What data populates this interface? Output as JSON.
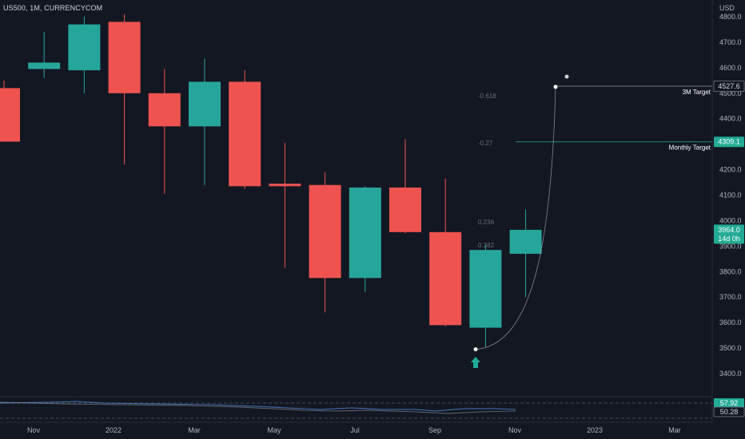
{
  "header": {
    "symbol_title": "US500, 1M, CURRENCYCOM"
  },
  "price_axis": {
    "currency": "USD",
    "ticks": [
      "4800.0",
      "4700.0",
      "4600.0",
      "4500.0",
      "4400.0",
      "4300.0",
      "4200.0",
      "4100.0",
      "4000.0",
      "3900.0",
      "3800.0",
      "3700.0",
      "3600.0",
      "3500.0",
      "3400.0"
    ]
  },
  "time_axis": {
    "labels": [
      "Nov",
      "2022",
      "Mar",
      "May",
      "Jul",
      "Sep",
      "Nov",
      "2023",
      "Mar"
    ]
  },
  "price_badges": {
    "target_3m": "4527.6",
    "target_monthly": "4309.1",
    "last_price": "3964.0",
    "countdown": "14d 0h"
  },
  "annotations": {
    "target_3m_label": "3M Target",
    "target_monthly_label": "Monthly Target",
    "fib_levels": [
      "-0.618",
      "-0.27",
      "0.236",
      "0.382"
    ]
  },
  "indicator": {
    "badge_upper": "57.92",
    "badge_lower": "50.28"
  },
  "colors": {
    "background": "#131722",
    "bull": "#26a69a",
    "bear": "#ef5350",
    "badge": "#22ab94",
    "grid": "#1e222d",
    "text": "#b2b5be"
  },
  "chart_data": {
    "type": "candlestick",
    "symbol": "US500",
    "interval": "1M",
    "currency": "USD",
    "ylim": [
      3350,
      4850
    ],
    "candles": [
      {
        "period": "Sep 2021",
        "open": 4520,
        "high": 4550,
        "close": 4310,
        "low": 4310
      },
      {
        "period": "Oct 2021",
        "open": 4595,
        "high": 4740,
        "close": 4620,
        "low": 4560
      },
      {
        "period": "Nov 2021",
        "open": 4590,
        "high": 4800,
        "close": 4770,
        "low": 4500
      },
      {
        "period": "Dec 2021",
        "open": 4780,
        "high": 4810,
        "close": 4500,
        "low": 4220
      },
      {
        "period": "Jan 2022",
        "open": 4500,
        "high": 4595,
        "close": 4370,
        "low": 4105
      },
      {
        "period": "Feb 2022",
        "open": 4370,
        "high": 4635,
        "close": 4545,
        "low": 4140
      },
      {
        "period": "Mar 2022",
        "open": 4545,
        "high": 4590,
        "close": 4135,
        "low": 4125
      },
      {
        "period": "Apr 2022",
        "open": 4145,
        "high": 4305,
        "close": 4135,
        "low": 3815
      },
      {
        "period": "May 2022",
        "open": 4140,
        "high": 4190,
        "close": 3775,
        "low": 3640
      },
      {
        "period": "Jun 2022",
        "open": 3775,
        "high": 4135,
        "close": 4130,
        "low": 3720
      },
      {
        "period": "Jul 2022",
        "open": 4130,
        "high": 4320,
        "close": 3955,
        "low": 3950
      },
      {
        "period": "Aug 2022",
        "open": 3955,
        "high": 4165,
        "close": 3590,
        "low": 3585
      },
      {
        "period": "Sep 2022",
        "open": 3580,
        "high": 3905,
        "close": 3885,
        "low": 3505
      },
      {
        "period": "Oct 2022",
        "open": 3870,
        "high": 4045,
        "close": 3964,
        "low": 3700
      }
    ],
    "horizontal_levels": [
      {
        "label": "3M Target",
        "value": 4527.6
      },
      {
        "label": "Monthly Target",
        "value": 4309.1
      }
    ],
    "fib_levels": [
      "-0.618",
      "-0.27",
      "0.236",
      "0.382"
    ],
    "projection_path": {
      "start": {
        "period": "Sep 2022",
        "value": 3495
      },
      "end": {
        "period": "Dec 2022",
        "value": 4525
      }
    },
    "indicator": {
      "upper": 57.92,
      "lower": 50.28
    },
    "x_tick_labels": [
      "Nov",
      "2022",
      "Mar",
      "May",
      "Jul",
      "Sep",
      "Nov",
      "2023",
      "Mar"
    ],
    "y_tick_labels": [
      "4800.0",
      "4700.0",
      "4600.0",
      "4500.0",
      "4400.0",
      "4300.0",
      "4200.0",
      "4100.0",
      "4000.0",
      "3900.0",
      "3800.0",
      "3700.0",
      "3600.0",
      "3500.0",
      "3400.0"
    ],
    "grid": false
  }
}
